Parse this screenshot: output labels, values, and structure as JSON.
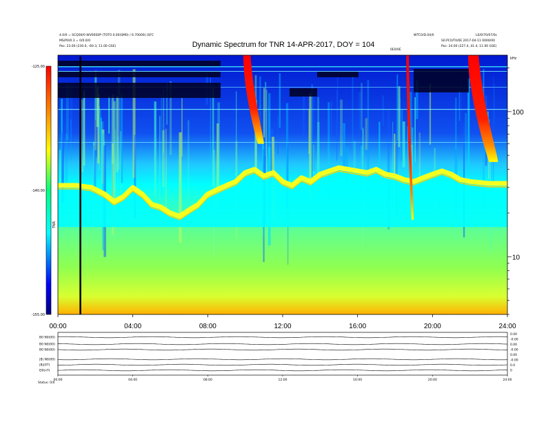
{
  "chart_data": {
    "type": "heatmap",
    "title": "Dynamic Spectrum for TNR 14-APR-2017, DOY = 104",
    "xlabel": "",
    "ylabel": "",
    "x_range_hours": [
      0,
      24
    ],
    "x_ticks": [
      "00:00",
      "04:00",
      "08:00",
      "12:00",
      "16:00",
      "20:00",
      "24:00"
    ],
    "y_scale": "log",
    "y_range_khz": [
      4,
      245
    ],
    "y_ticks": [
      {
        "value": 100,
        "label": "100"
      },
      {
        "value": 10,
        "label": "10"
      }
    ],
    "y_unit_label": "kHz",
    "colorbar": {
      "label": "TNR",
      "ticks": [
        "-125.00",
        "-140.00",
        "-155.00"
      ],
      "range": [
        -155,
        -125
      ],
      "stops": [
        "#000080",
        "#0000ff",
        "#00ffff",
        "#00ff80",
        "#ffff00",
        "#ff8000",
        "#ff0000"
      ]
    },
    "features": {
      "ridge_khz": [
        [
          0,
          31
        ],
        [
          1,
          31
        ],
        [
          1.8,
          30
        ],
        [
          2.5,
          27
        ],
        [
          3,
          24
        ],
        [
          3.5,
          26
        ],
        [
          4,
          30
        ],
        [
          4.5,
          27
        ],
        [
          5,
          23
        ],
        [
          5.5,
          22
        ],
        [
          6,
          20
        ],
        [
          6.5,
          19
        ],
        [
          7,
          21
        ],
        [
          7.5,
          23
        ],
        [
          8,
          27
        ],
        [
          8.5,
          29
        ],
        [
          9,
          31
        ],
        [
          9.5,
          33
        ],
        [
          10,
          38
        ],
        [
          10.5,
          40
        ],
        [
          11,
          36
        ],
        [
          11.5,
          38
        ],
        [
          12,
          33
        ],
        [
          12.5,
          31
        ],
        [
          13,
          35
        ],
        [
          13.5,
          33
        ],
        [
          14,
          37
        ],
        [
          14.5,
          39
        ],
        [
          15,
          41
        ],
        [
          15.5,
          40
        ],
        [
          16,
          39
        ],
        [
          16.5,
          38
        ],
        [
          17,
          40
        ],
        [
          17.5,
          37
        ],
        [
          18,
          36
        ],
        [
          18.5,
          34
        ],
        [
          19,
          33
        ],
        [
          19.5,
          35
        ],
        [
          20,
          37
        ],
        [
          20.5,
          39
        ],
        [
          21,
          37
        ],
        [
          21.5,
          34
        ],
        [
          22,
          33
        ],
        [
          23,
          32
        ],
        [
          24,
          32
        ]
      ],
      "bursts": [
        {
          "start_h": 9.9,
          "end_h": 11.0,
          "top_khz": 245,
          "bottom_khz": 60
        },
        {
          "start_h": 18.6,
          "end_h": 19.0,
          "top_khz": 245,
          "bottom_khz": 18
        },
        {
          "start_h": 21.9,
          "end_h": 23.5,
          "top_khz": 245,
          "bottom_khz": 45
        }
      ],
      "vertical_line_h": 1.2
    }
  },
  "header": {
    "left_line1": "4.0/0 = SCQ00/0 WV00S0P (TOT0 0.00(SM0) / 6.70000(.)SFC",
    "left_line2": "MS/P0/0.3 = 0/0.0/0",
    "left_line3": "Pos:  23.00 (230.0, -60.3, 11.00 GSE)",
    "right_top1": "WTC0/D.04/0",
    "right_top2": "L0/0/70/07/0c",
    "right_line2": "S0.PC0/T0/0E 2017-04-11 0000/00",
    "right_line3": "Pos:  24.00 (227.4, 41.4, 11.00 GSE)",
    "mid_label": "0E0/0E"
  },
  "subpanel": {
    "rows": [
      "B0 N0(00)",
      "B0 N0(00)",
      "B0 N0(00)",
      "|B| N0(00)",
      "|B|(0T)",
      "D0(nT)"
    ],
    "right_values": [
      "0.00",
      "-0.00",
      "0.00",
      "-0.00",
      "0.00",
      "-0.00",
      "0.0",
      "0"
    ],
    "footer": "Status:  0/0"
  }
}
